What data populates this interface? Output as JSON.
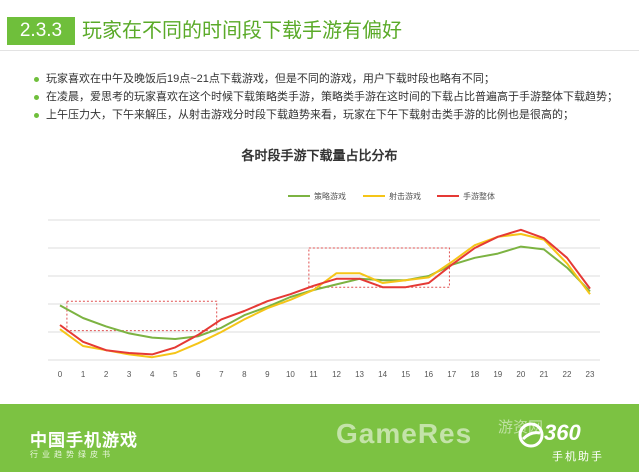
{
  "header": {
    "section_number": "2.3.3",
    "title": "玩家在不同的时间段下载手游有偏好"
  },
  "bullets": [
    "玩家喜欢在中午及晚饭后19点~21点下载游戏，但是不同的游戏，用户下载时段也略有不同；",
    "在凌晨，爱思考的玩家喜欢在这个时候下载策略类手游，策略类手游在这时间的下载占比普遍高于手游整体下载趋势；",
    "上午压力大，下午来解压，从射击游戏分时段下载趋势来看，玩家在下午下载射击类手游的比例也是很高的；"
  ],
  "chart_data": {
    "type": "line",
    "title": "各时段手游下载量占比分布",
    "x": [
      "0",
      "1",
      "2",
      "3",
      "4",
      "5",
      "6",
      "7",
      "8",
      "9",
      "10",
      "11",
      "12",
      "13",
      "14",
      "15",
      "16",
      "17",
      "18",
      "19",
      "20",
      "21",
      "22",
      "23"
    ],
    "ylim": [
      0,
      100
    ],
    "grid": true,
    "legend_position": "top",
    "series": [
      {
        "name": "策略游戏",
        "color": "#7cb342",
        "values": [
          39,
          30,
          24,
          19,
          16,
          15,
          17,
          23,
          32,
          38,
          45,
          50,
          54,
          58,
          57,
          57,
          60,
          68,
          73,
          76,
          81,
          79,
          66,
          49
        ]
      },
      {
        "name": "射击游戏",
        "color": "#f5c518",
        "values": [
          22,
          10,
          7,
          4,
          2,
          5,
          12,
          20,
          29,
          37,
          43,
          50,
          62,
          62,
          55,
          57,
          59,
          70,
          82,
          88,
          90,
          86,
          69,
          47
        ]
      },
      {
        "name": "手游整体",
        "color": "#e53935",
        "values": [
          25,
          13,
          7,
          5,
          4,
          9,
          18,
          29,
          35,
          42,
          47,
          53,
          58,
          58,
          52,
          52,
          55,
          68,
          80,
          88,
          93,
          87,
          73,
          51
        ]
      }
    ],
    "highlight_boxes": [
      {
        "x_range": [
          0.3,
          6.8
        ],
        "y_range": [
          21,
          42
        ]
      },
      {
        "x_range": [
          10.8,
          16.9
        ],
        "y_range": [
          52,
          80
        ]
      }
    ]
  },
  "footer": {
    "brand_title": "中国手机游戏",
    "brand_subtitle": "行业趋势绿皮书",
    "watermark_text": "GameRes",
    "watermark_cn": "游资网",
    "logo_number": "360",
    "logo_subtitle": "手机助手"
  }
}
